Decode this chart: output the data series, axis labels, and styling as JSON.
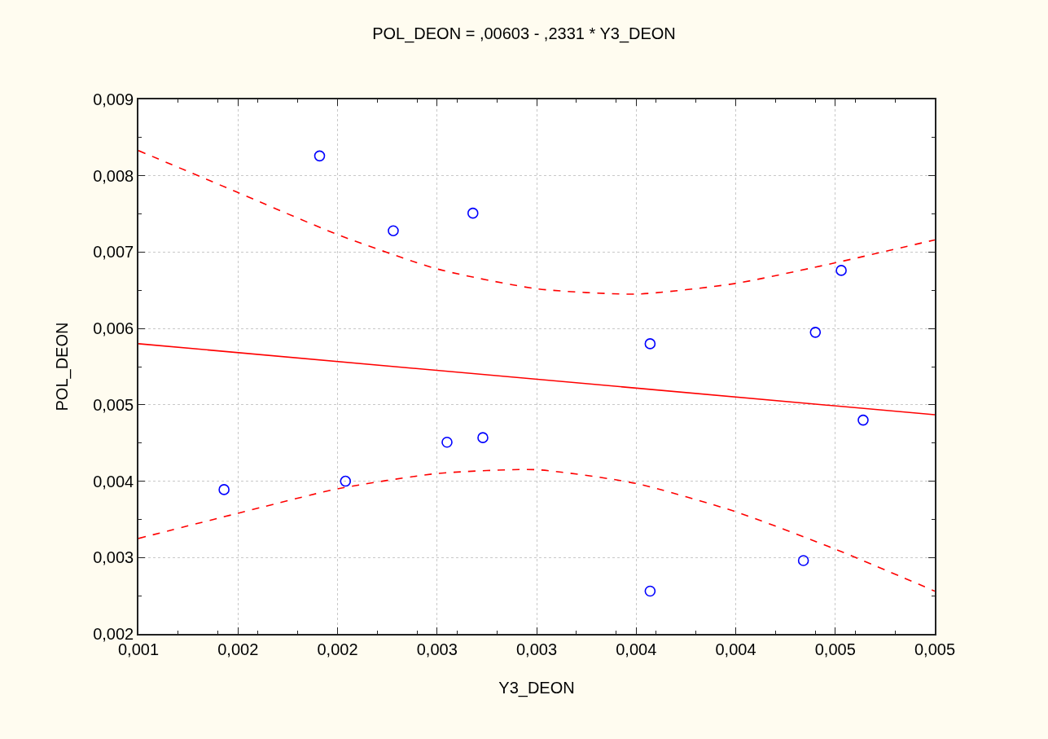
{
  "chart_data": {
    "type": "scatter",
    "title": "POL_DEON = ,00603 - ,2331 * Y3_DEON",
    "xlabel": "Y3_DEON",
    "ylabel": "POL_DEON",
    "series": [
      {
        "color": "#0000ff",
        "marker": "circle",
        "x": [
          0.00143,
          0.00191,
          0.00204,
          0.00228,
          0.00255,
          0.00268,
          0.00273,
          0.00357,
          0.00357,
          0.00434,
          0.0044,
          0.00453,
          0.00464
        ],
        "values": [
          0.00389,
          0.00826,
          0.004,
          0.00728,
          0.00451,
          0.00751,
          0.00457,
          0.0058,
          0.00256,
          0.00296,
          0.00595,
          0.00676,
          0.0048
        ]
      },
      {
        "type": "line",
        "color": "#ff0000",
        "line_style": "solid",
        "x": [
          0.001,
          0.005
        ],
        "values": [
          0.0058,
          0.00487
        ]
      },
      {
        "type": "line",
        "color": "#ff0000",
        "line_style": "dashed",
        "x": [
          0.001,
          0.0015,
          0.002,
          0.0025,
          0.003,
          0.0035,
          0.004,
          0.0045,
          0.005
        ],
        "values": [
          0.00833,
          0.00778,
          0.00723,
          0.00678,
          0.00652,
          0.00645,
          0.00659,
          0.00686,
          0.00716
        ]
      },
      {
        "type": "line",
        "color": "#ff0000",
        "line_style": "dashed",
        "x": [
          0.001,
          0.0015,
          0.002,
          0.0025,
          0.003,
          0.0035,
          0.004,
          0.0045,
          0.005
        ],
        "values": [
          0.00325,
          0.00358,
          0.0039,
          0.0041,
          0.00415,
          0.00397,
          0.0036,
          0.00311,
          0.00256
        ]
      }
    ],
    "xlim": [
      0.001,
      0.005
    ],
    "xticks": [
      {
        "value": 0.001,
        "label": "0,001"
      },
      {
        "value": 0.0015,
        "label": "0,002"
      },
      {
        "value": 0.002,
        "label": "0,002"
      },
      {
        "value": 0.0025,
        "label": "0,003"
      },
      {
        "value": 0.003,
        "label": "0,003"
      },
      {
        "value": 0.0035,
        "label": "0,004"
      },
      {
        "value": 0.004,
        "label": "0,004"
      },
      {
        "value": 0.0045,
        "label": "0,005"
      },
      {
        "value": 0.005,
        "label": "0,005"
      }
    ],
    "ylim": [
      0.002,
      0.009
    ],
    "yticks": [
      {
        "value": 0.002,
        "label": "0,002"
      },
      {
        "value": 0.003,
        "label": "0,003"
      },
      {
        "value": 0.004,
        "label": "0,004"
      },
      {
        "value": 0.005,
        "label": "0,005"
      },
      {
        "value": 0.006,
        "label": "0,006"
      },
      {
        "value": 0.007,
        "label": "0,007"
      },
      {
        "value": 0.008,
        "label": "0,008"
      },
      {
        "value": 0.009,
        "label": "0,009"
      }
    ],
    "grid": true
  }
}
